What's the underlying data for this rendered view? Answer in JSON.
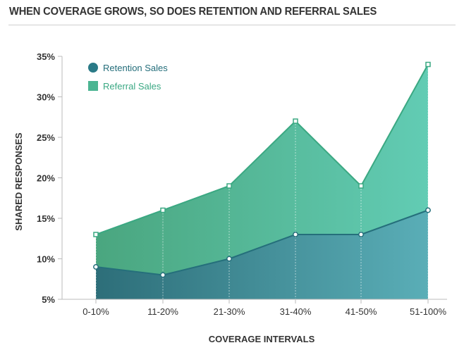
{
  "title": "WHEN COVERAGE GROWS, SO DOES RETENTION AND REFERRAL SALES",
  "colors": {
    "retention": "#2a7a87",
    "referral": "#4bb592",
    "referral_line": "#3ba882",
    "tick_text": "#333333"
  },
  "chart_data": {
    "type": "area",
    "title": "WHEN COVERAGE GROWS, SO DOES RETENTION AND REFERRAL SALES",
    "xlabel": "COVERAGE INTERVALS",
    "ylabel": "SHARED RESPONSES",
    "categories": [
      "0-10%",
      "11-20%",
      "21-30%",
      "31-40%",
      "41-50%",
      "51-100%"
    ],
    "y_ticks": [
      "5%",
      "10%",
      "15%",
      "20%",
      "25%",
      "30%",
      "35%"
    ],
    "ylim": [
      5,
      35
    ],
    "series": [
      {
        "name": "Retention Sales",
        "values": [
          9,
          8,
          10,
          13,
          13,
          16
        ]
      },
      {
        "name": "Referral Sales",
        "values": [
          13,
          16,
          19,
          27,
          19,
          34
        ]
      }
    ],
    "legend": "top-left",
    "grid": false
  }
}
